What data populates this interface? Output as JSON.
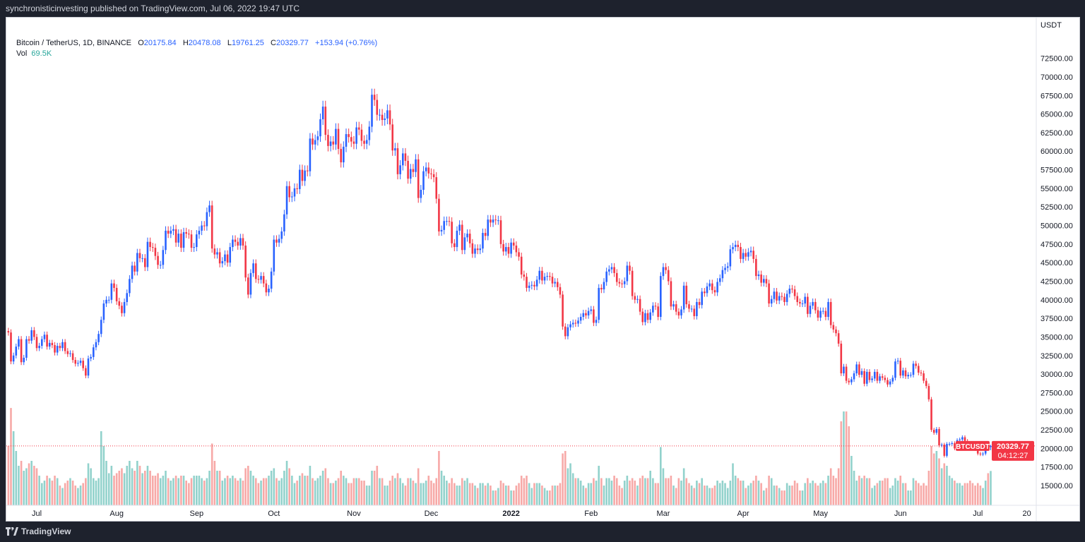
{
  "header": {
    "published": "synchronisticinvesting published on TradingView.com, Jul 06, 2022 19:47 UTC"
  },
  "legend": {
    "symbol": "Bitcoin / TetherUS, 1D, BINANCE",
    "open_label": "O",
    "open": "20175.84",
    "high_label": "H",
    "high": "20478.08",
    "low_label": "L",
    "low": "19761.25",
    "close_label": "C",
    "close": "20329.77",
    "change": "+153.94 (+0.76%)",
    "vol_label": "Vol",
    "vol": "69.5K"
  },
  "footer": {
    "brand": "TradingView"
  },
  "colors": {
    "up": "#2962ff",
    "down": "#f23645",
    "vol_up": "#26a69a",
    "vol_down": "#ef5350",
    "price_tag": "#f23645"
  },
  "chart_data": {
    "type": "candlestick",
    "symbol_tag": "BTCUSDT",
    "last_price": "20329.77",
    "countdown": "04:12:27",
    "price_unit": "USDT",
    "ylim": [
      12000,
      74500
    ],
    "y_ticks": [
      15000,
      17500,
      20000,
      22500,
      25000,
      27500,
      30000,
      32500,
      35000,
      37500,
      40000,
      42500,
      45000,
      47500,
      50000,
      52500,
      55000,
      57500,
      60000,
      62500,
      65000,
      67500,
      70000,
      72500
    ],
    "y_tick_labels": [
      "15000.00",
      "17500.00",
      "20000.00",
      "22500.00",
      "25000.00",
      "27500.00",
      "30000.00",
      "32500.00",
      "35000.00",
      "37500.00",
      "40000.00",
      "42500.00",
      "45000.00",
      "47500.00",
      "50000.00",
      "52500.00",
      "55000.00",
      "57500.00",
      "60000.00",
      "62500.00",
      "65000.00",
      "67500.00",
      "70000.00",
      "72500.00"
    ],
    "x_ticks": [
      {
        "date": "2021-07-01",
        "label": "Jul"
      },
      {
        "date": "2021-08-01",
        "label": "Aug"
      },
      {
        "date": "2021-09-01",
        "label": "Sep"
      },
      {
        "date": "2021-10-01",
        "label": "Oct"
      },
      {
        "date": "2021-11-01",
        "label": "Nov"
      },
      {
        "date": "2021-12-01",
        "label": "Dec"
      },
      {
        "date": "2022-01-01",
        "label": "2022",
        "bold": true
      },
      {
        "date": "2022-02-01",
        "label": "Feb"
      },
      {
        "date": "2022-03-01",
        "label": "Mar"
      },
      {
        "date": "2022-04-01",
        "label": "Apr"
      },
      {
        "date": "2022-05-01",
        "label": "May"
      },
      {
        "date": "2022-06-01",
        "label": "Jun"
      },
      {
        "date": "2022-07-01",
        "label": "Jul"
      },
      {
        "date": "2022-07-20",
        "label": "20"
      }
    ],
    "first_candle_date": "2021-06-20",
    "first_open": 35800,
    "close": [
      35600,
      31700,
      32500,
      33700,
      34700,
      31600,
      32200,
      34700,
      34500,
      35900,
      35000,
      33500,
      33800,
      34700,
      35300,
      33700,
      34200,
      33900,
      32900,
      33800,
      33500,
      34300,
      33100,
      32700,
      32800,
      31900,
      31400,
      31500,
      31800,
      30800,
      29800,
      32100,
      32300,
      33600,
      34300,
      35400,
      37300,
      39500,
      40000,
      40000,
      42200,
      41600,
      39800,
      39200,
      38200,
      39700,
      40900,
      42800,
      44600,
      43800,
      46300,
      45600,
      45600,
      44400,
      47800,
      47100,
      47000,
      45900,
      44700,
      44700,
      46700,
      49300,
      48900,
      49300,
      49500,
      47700,
      48900,
      47000,
      49100,
      48900,
      48800,
      47000,
      47100,
      48800,
      49300,
      50000,
      49900,
      51800,
      52700,
      46900,
      46100,
      46400,
      44900,
      45200,
      46100,
      45000,
      47100,
      48100,
      47800,
      47300,
      48300,
      47300,
      43000,
      40700,
      43600,
      44900,
      42800,
      42700,
      43200,
      42200,
      41000,
      41500,
      43800,
      48100,
      47700,
      48200,
      49200,
      51500,
      55300,
      53800,
      53900,
      55000,
      54900,
      57500,
      56000,
      57400,
      57300,
      61700,
      60900,
      61500,
      62000,
      64300,
      66000,
      62200,
      60700,
      61300,
      60900,
      63000,
      60300,
      58500,
      60600,
      62300,
      61900,
      61300,
      61000,
      63200,
      62900,
      61400,
      61000,
      61500,
      63300,
      67600,
      66900,
      64900,
      64900,
      64200,
      64400,
      65500,
      63600,
      60100,
      60400,
      56900,
      58100,
      59700,
      58700,
      56300,
      57600,
      57200,
      58900,
      53700,
      54800,
      57300,
      57800,
      57000,
      56900,
      56500,
      53600,
      49200,
      49400,
      50600,
      50600,
      50500,
      47600,
      47100,
      49300,
      50100,
      46700,
      48400,
      48900,
      47600,
      46200,
      46900,
      46700,
      46900,
      49000,
      48600,
      50800,
      50400,
      50800,
      50700,
      50700,
      47500,
      46500,
      47100,
      46200,
      47700,
      47300,
      46400,
      45800,
      43400,
      43100,
      41600,
      41900,
      42000,
      41800,
      42700,
      43900,
      42600,
      43100,
      43200,
      43100,
      42200,
      42400,
      41700,
      40700,
      36400,
      35100,
      36300,
      36700,
      36900,
      36800,
      37200,
      37700,
      38200,
      37900,
      38500,
      38700,
      36900,
      37300,
      41600,
      41400,
      42400,
      43800,
      44100,
      44400,
      43600,
      42400,
      42200,
      42100,
      42500,
      44600,
      43900,
      40500,
      40000,
      40100,
      38400,
      37000,
      38200,
      37300,
      38300,
      39200,
      39100,
      37700,
      43200,
      44400,
      44000,
      42500,
      39100,
      39400,
      38400,
      37900,
      38700,
      41900,
      39400,
      38800,
      38800,
      37800,
      39700,
      39300,
      41100,
      40900,
      41800,
      42200,
      41300,
      41000,
      42400,
      42900,
      44000,
      44300,
      44500,
      46800,
      47100,
      47400,
      47100,
      45500,
      46300,
      45800,
      46400,
      46600,
      45500,
      43200,
      43400,
      42300,
      42800,
      42200,
      39500,
      40100,
      41100,
      39900,
      40500,
      40400,
      39700,
      40800,
      41500,
      41400,
      40500,
      39700,
      39500,
      39500,
      40400,
      38100,
      39200,
      39700,
      38600,
      37600,
      38500,
      38500,
      37700,
      39700,
      36600,
      36000,
      35500,
      34100,
      30100,
      31000,
      29100,
      28900,
      29300,
      30100,
      31300,
      29900,
      30400,
      28700,
      30300,
      29200,
      29400,
      30300,
      29100,
      29700,
      29500,
      29200,
      28600,
      29000,
      29500,
      31700,
      31800,
      29800,
      30500,
      29700,
      29900,
      29900,
      31400,
      31100,
      30200,
      30100,
      29100,
      28400,
      26600,
      22500,
      22100,
      22600,
      20400,
      20500,
      19000,
      20600,
      20600,
      20700,
      20000,
      21100,
      21200,
      21500,
      21000,
      20700,
      20300,
      20100,
      19900,
      19300,
      19200,
      19300,
      20200,
      20175.84,
      20329.77
    ],
    "volume_k": [
      120,
      197,
      150,
      110,
      80,
      90,
      70,
      75,
      85,
      90,
      80,
      75,
      60,
      45,
      50,
      60,
      55,
      50,
      60,
      55,
      40,
      35,
      45,
      50,
      55,
      50,
      40,
      35,
      40,
      45,
      55,
      85,
      75,
      55,
      50,
      55,
      150,
      120,
      90,
      65,
      80,
      60,
      65,
      70,
      75,
      65,
      80,
      90,
      75,
      70,
      90,
      80,
      65,
      70,
      80,
      70,
      60,
      60,
      65,
      55,
      60,
      70,
      55,
      50,
      55,
      60,
      55,
      60,
      60,
      50,
      45,
      55,
      60,
      60,
      60,
      55,
      50,
      55,
      70,
      125,
      90,
      70,
      70,
      50,
      55,
      60,
      55,
      60,
      55,
      50,
      55,
      50,
      75,
      80,
      70,
      60,
      55,
      45,
      50,
      55,
      55,
      60,
      70,
      75,
      55,
      50,
      55,
      70,
      90,
      75,
      60,
      45,
      50,
      60,
      65,
      60,
      60,
      80,
      55,
      50,
      55,
      60,
      70,
      75,
      55,
      45,
      45,
      50,
      55,
      70,
      60,
      55,
      45,
      45,
      55,
      55,
      55,
      50,
      50,
      40,
      40,
      70,
      70,
      80,
      55,
      55,
      40,
      40,
      50,
      60,
      55,
      65,
      55,
      45,
      40,
      55,
      55,
      50,
      45,
      75,
      45,
      45,
      50,
      60,
      50,
      45,
      55,
      110,
      70,
      60,
      50,
      45,
      55,
      45,
      40,
      40,
      55,
      50,
      55,
      45,
      45,
      40,
      35,
      45,
      45,
      40,
      45,
      40,
      30,
      30,
      35,
      50,
      45,
      40,
      40,
      30,
      30,
      40,
      45,
      60,
      55,
      60,
      45,
      35,
      45,
      45,
      45,
      40,
      35,
      30,
      30,
      40,
      40,
      40,
      45,
      105,
      110,
      75,
      85,
      65,
      55,
      55,
      50,
      40,
      35,
      45,
      45,
      55,
      50,
      80,
      55,
      40,
      55,
      55,
      50,
      60,
      55,
      40,
      35,
      50,
      60,
      50,
      55,
      50,
      40,
      55,
      60,
      55,
      55,
      70,
      55,
      45,
      45,
      118,
      75,
      55,
      55,
      60,
      40,
      35,
      55,
      50,
      75,
      55,
      45,
      40,
      35,
      50,
      45,
      55,
      40,
      40,
      35,
      35,
      40,
      50,
      45,
      50,
      45,
      35,
      50,
      85,
      60,
      55,
      50,
      50,
      35,
      40,
      45,
      50,
      60,
      50,
      45,
      30,
      35,
      60,
      55,
      40,
      40,
      35,
      30,
      30,
      45,
      40,
      40,
      50,
      45,
      30,
      30,
      45,
      55,
      45,
      50,
      45,
      40,
      45,
      50,
      45,
      60,
      75,
      60,
      55,
      75,
      170,
      190,
      190,
      160,
      100,
      70,
      50,
      60,
      55,
      60,
      55,
      55,
      35,
      40,
      45,
      50,
      50,
      55,
      55,
      35,
      40,
      55,
      50,
      60,
      45,
      45,
      30,
      30,
      55,
      50,
      45,
      40,
      45,
      40,
      70,
      120,
      105,
      110,
      95,
      75,
      85,
      80,
      60,
      55,
      50,
      45,
      45,
      40,
      45,
      45,
      50,
      45,
      40,
      45,
      40,
      35,
      50,
      65,
      69.5
    ]
  }
}
